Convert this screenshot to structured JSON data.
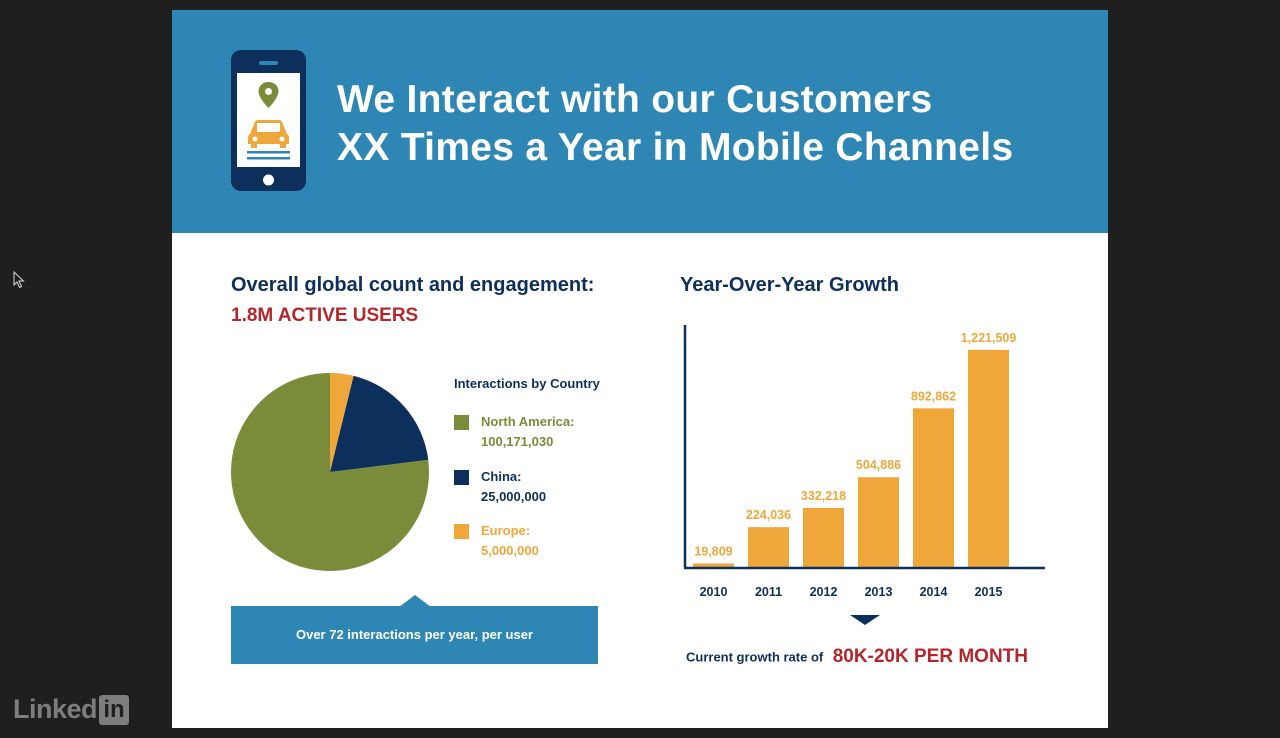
{
  "banner": {
    "title_line1": "We Interact with our Customers",
    "title_line2": "XX Times a Year in Mobile Channels",
    "icon": "smartphone-location-car-icon"
  },
  "left": {
    "heading": "Overall global count and engagement:",
    "active_users": "1.8M ACTIVE USERS",
    "callout": "Over 72 interactions per year, per user"
  },
  "right": {
    "heading": "Year-Over-Year Growth",
    "growth_label": "Current growth rate of",
    "growth_value": "80K-20K PER MONTH"
  },
  "colors": {
    "banner": "#2e86b5",
    "navy": "#0d2f5c",
    "red": "#b5262b",
    "olive": "#7a8c3a",
    "orange": "#f0a73a"
  },
  "logo": {
    "word": "Linked",
    "box": "in"
  },
  "chart_data": [
    {
      "type": "pie",
      "title": "Interactions by Country",
      "legend_position": "right",
      "slices": [
        {
          "name": "North America:",
          "label": "100,171,030",
          "value": 100171030,
          "color": "#7a8c3a"
        },
        {
          "name": "China:",
          "label": "25,000,000",
          "value": 25000000,
          "color": "#0d2f5c"
        },
        {
          "name": "Europe:",
          "label": "5,000,000",
          "value": 5000000,
          "color": "#f0a73a"
        }
      ]
    },
    {
      "type": "bar",
      "title": "Year-Over-Year Growth",
      "categories": [
        "2010",
        "2011",
        "2012",
        "2013",
        "2014",
        "2015"
      ],
      "values": [
        19809,
        224036,
        332218,
        504886,
        892862,
        1221509
      ],
      "labels": [
        "19,809",
        "224,036",
        "332,218",
        "504,886",
        "892,862",
        "1,221,509"
      ],
      "ylim": [
        0,
        1350000
      ],
      "grid": false,
      "color": "#f0a73a",
      "axis_color": "#0d2f5c"
    }
  ]
}
